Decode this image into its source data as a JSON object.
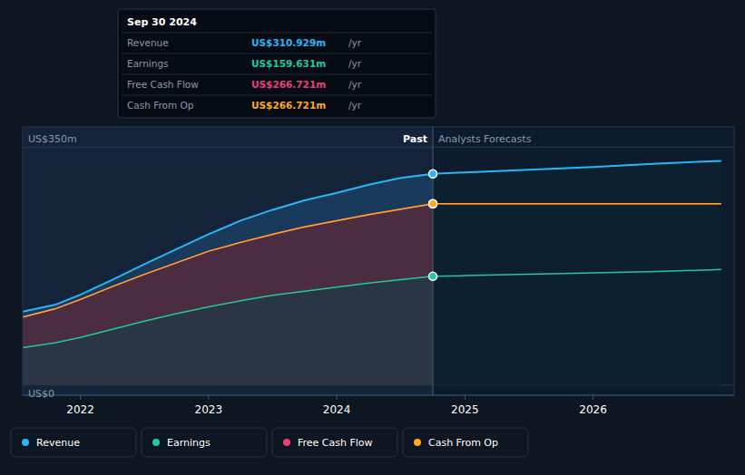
{
  "chart_data": {
    "type": "line",
    "x": [
      2021.55,
      2021.8,
      2022.0,
      2022.25,
      2022.5,
      2022.75,
      2023.0,
      2023.25,
      2023.5,
      2023.75,
      2024.0,
      2024.25,
      2024.5,
      2024.75,
      2025.0,
      2025.25,
      2025.5,
      2025.75,
      2026.0,
      2026.5,
      2027.0
    ],
    "series": [
      {
        "name": "Revenue",
        "color": "#29b6f6",
        "values": [
          108,
          118,
          133,
          155,
          178,
          200,
          222,
          242,
          258,
          272,
          283,
          295,
          305,
          311,
          313,
          315,
          317,
          319,
          321,
          326,
          330
        ]
      },
      {
        "name": "Earnings",
        "color": "#26c6a0",
        "values": [
          55,
          62,
          70,
          82,
          94,
          105,
          115,
          124,
          132,
          138,
          144,
          150,
          155,
          160,
          161,
          162,
          163,
          164,
          165,
          167,
          170
        ]
      },
      {
        "name": "Free Cash Flow",
        "color": "#ec407a",
        "values": [
          100,
          112,
          126,
          145,
          163,
          180,
          197,
          210,
          222,
          233,
          242,
          251,
          259,
          267,
          267,
          267,
          267,
          267,
          267,
          267,
          267
        ]
      },
      {
        "name": "Cash From Op",
        "color": "#ffa726",
        "values": [
          100,
          112,
          126,
          145,
          163,
          180,
          197,
          210,
          222,
          233,
          242,
          251,
          259,
          267,
          267,
          267,
          267,
          267,
          267,
          267,
          267
        ]
      }
    ],
    "xlim": [
      2021.55,
      2027.1
    ],
    "xticks": [
      2022,
      2023,
      2024,
      2025,
      2026
    ],
    "ylim": [
      -15,
      380
    ],
    "yticks": [
      {
        "value": 0,
        "label": "US$0"
      },
      {
        "value": 350,
        "label": "US$350m"
      }
    ],
    "grid": true,
    "annotations": [
      {
        "type": "vline",
        "x": 2024.75,
        "labels": [
          "Past",
          "Analysts Forecasts"
        ]
      },
      {
        "type": "tooltip",
        "title": "Sep 30 2024",
        "rows": [
          {
            "label": "Revenue",
            "value": 310.929,
            "value_label": "US$310.929m",
            "unit": "/yr",
            "color": "#29b6f6"
          },
          {
            "label": "Earnings",
            "value": 159.631,
            "value_label": "US$159.631m",
            "unit": "/yr",
            "color": "#26c6a0"
          },
          {
            "label": "Free Cash Flow",
            "value": 266.721,
            "value_label": "US$266.721m",
            "unit": "/yr",
            "color": "#ec407a"
          },
          {
            "label": "Cash From Op",
            "value": 266.721,
            "value_label": "US$266.721m",
            "unit": "/yr",
            "color": "#ffa726"
          }
        ]
      }
    ]
  }
}
